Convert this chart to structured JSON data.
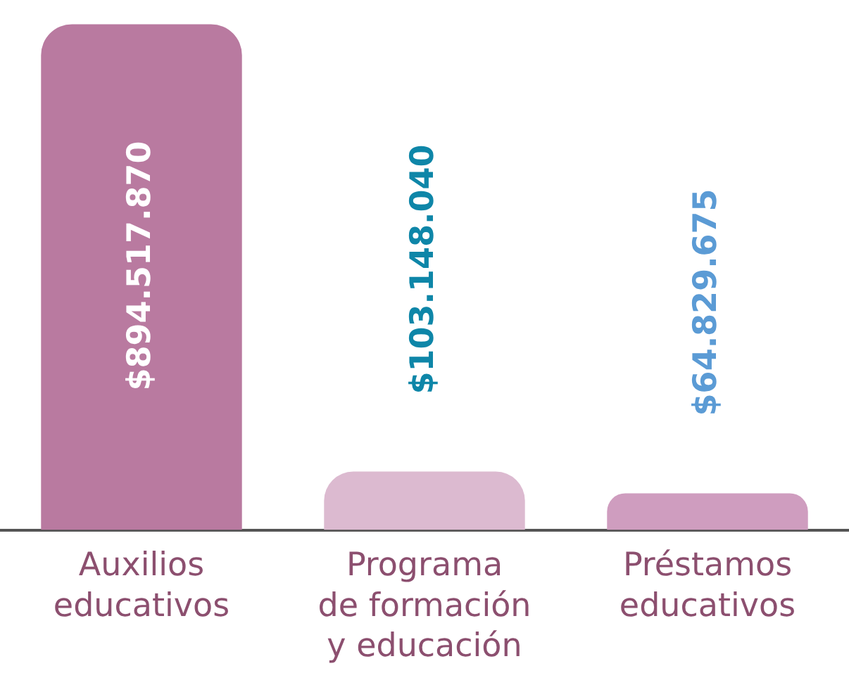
{
  "chart_data": {
    "type": "bar",
    "categories": [
      "Auxilios educativos",
      "Programa de formación y educación",
      "Préstamos educativos"
    ],
    "values": [
      894517870,
      103148040,
      64829675
    ],
    "colors": [
      "#b97aa0",
      "#dcbad0",
      "#cf9dbf"
    ],
    "value_labels": [
      "$894.517.870",
      "$103.148.040",
      "$64.829.675"
    ],
    "grid": false,
    "legend": false,
    "tick_labels": "x"
  }
}
